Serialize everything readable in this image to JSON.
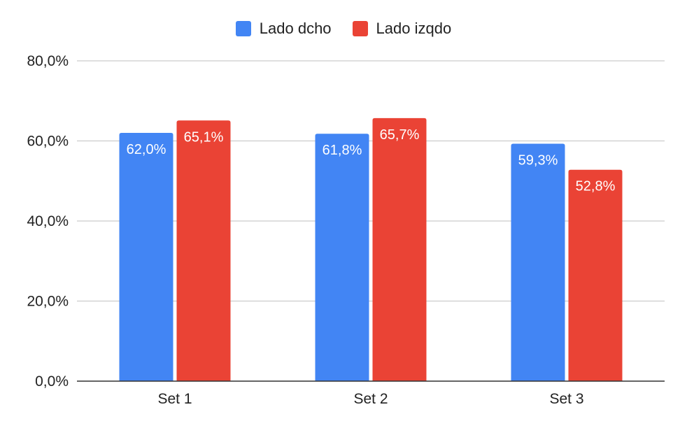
{
  "chart_data": {
    "type": "bar",
    "categories": [
      "Set 1",
      "Set 2",
      "Set 3"
    ],
    "series": [
      {
        "name": "Lado dcho",
        "color": "#4285f4",
        "values": [
          62.0,
          61.8,
          59.3
        ],
        "labels": [
          "62,0%",
          "61,8%",
          "59,3%"
        ]
      },
      {
        "name": "Lado izqdo",
        "color": "#ea4335",
        "values": [
          65.1,
          65.7,
          52.8
        ],
        "labels": [
          "65,1%",
          "65,7%",
          "52,8%"
        ]
      }
    ],
    "ylim": [
      0,
      80
    ],
    "yticks": [
      0,
      20,
      40,
      60,
      80
    ],
    "ytick_labels": [
      "0,0%",
      "20,0%",
      "40,0%",
      "60,0%",
      "80,0%"
    ],
    "legend_position": "top-center",
    "grid": true
  }
}
